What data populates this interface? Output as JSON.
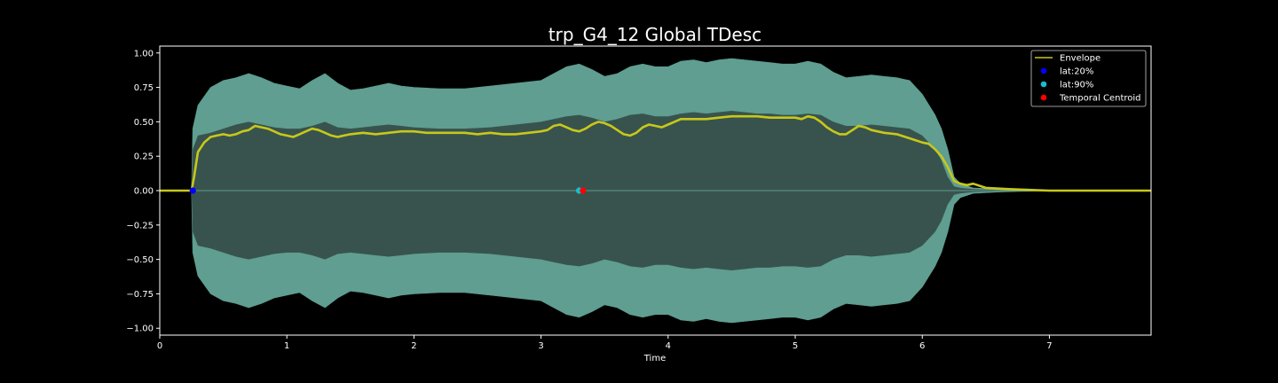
{
  "chart_data": {
    "type": "line",
    "title": "trp_G4_12 Global TDesc",
    "xlabel": "Time",
    "ylabel": "",
    "xlim": [
      0,
      7.8
    ],
    "ylim": [
      -1.05,
      1.05
    ],
    "xticks": [
      0,
      1,
      2,
      3,
      4,
      5,
      6,
      7
    ],
    "yticks": [
      1.0,
      0.75,
      0.5,
      0.25,
      0.0,
      -0.25,
      -0.5,
      -0.75,
      -1.0
    ],
    "xtick_labels": [
      "0",
      "1",
      "2",
      "3",
      "4",
      "5",
      "6",
      "7"
    ],
    "ytick_labels": [
      "1.00",
      "0.75",
      "0.50",
      "0.25",
      "0.00",
      "−0.25",
      "−0.50",
      "−0.75",
      "−1.00"
    ],
    "grid": false,
    "legend_position": "top-right",
    "colors": {
      "background": "#000000",
      "waveform_outer": "#5f9e91",
      "waveform_inner": "#38534d",
      "envelope": "#c8c81a",
      "lat20": "#0000ff",
      "lat90": "#17becf",
      "centroid": "#ff0000",
      "axes": "#ffffff"
    },
    "waveform": {
      "name": "",
      "x": [
        0,
        0.25,
        0.26,
        0.3,
        0.4,
        0.5,
        0.6,
        0.7,
        0.8,
        0.9,
        1.0,
        1.1,
        1.2,
        1.3,
        1.4,
        1.5,
        1.6,
        1.7,
        1.8,
        1.9,
        2.0,
        2.2,
        2.4,
        2.6,
        2.8,
        3.0,
        3.1,
        3.2,
        3.3,
        3.4,
        3.5,
        3.6,
        3.7,
        3.8,
        3.9,
        4.0,
        4.1,
        4.2,
        4.3,
        4.4,
        4.5,
        4.6,
        4.7,
        4.8,
        4.9,
        5.0,
        5.1,
        5.2,
        5.3,
        5.4,
        5.5,
        5.6,
        5.7,
        5.8,
        5.9,
        6.0,
        6.1,
        6.15,
        6.2,
        6.25,
        6.3,
        6.4,
        6.6,
        6.8,
        7.0,
        7.2,
        7.8
      ],
      "upper": [
        0,
        0,
        0.45,
        0.62,
        0.75,
        0.8,
        0.82,
        0.85,
        0.82,
        0.78,
        0.76,
        0.74,
        0.8,
        0.85,
        0.78,
        0.73,
        0.74,
        0.76,
        0.78,
        0.76,
        0.75,
        0.74,
        0.74,
        0.76,
        0.78,
        0.8,
        0.85,
        0.9,
        0.92,
        0.88,
        0.83,
        0.85,
        0.9,
        0.92,
        0.9,
        0.9,
        0.94,
        0.95,
        0.93,
        0.95,
        0.96,
        0.95,
        0.94,
        0.93,
        0.92,
        0.92,
        0.94,
        0.92,
        0.86,
        0.82,
        0.83,
        0.84,
        0.83,
        0.82,
        0.8,
        0.7,
        0.55,
        0.45,
        0.3,
        0.1,
        0.05,
        0.02,
        0.01,
        0.005,
        0.002,
        0,
        0
      ],
      "inner": [
        0,
        0,
        0.3,
        0.4,
        0.42,
        0.45,
        0.48,
        0.5,
        0.48,
        0.46,
        0.45,
        0.45,
        0.47,
        0.5,
        0.46,
        0.45,
        0.46,
        0.47,
        0.48,
        0.47,
        0.46,
        0.45,
        0.45,
        0.46,
        0.48,
        0.5,
        0.52,
        0.54,
        0.55,
        0.53,
        0.5,
        0.52,
        0.55,
        0.56,
        0.54,
        0.54,
        0.56,
        0.57,
        0.56,
        0.57,
        0.58,
        0.57,
        0.56,
        0.56,
        0.55,
        0.55,
        0.56,
        0.55,
        0.5,
        0.47,
        0.47,
        0.48,
        0.47,
        0.46,
        0.45,
        0.4,
        0.3,
        0.22,
        0.1,
        0.03,
        0.02,
        0.01,
        0.005,
        0.002,
        0.001,
        0,
        0
      ]
    },
    "series": [
      {
        "name": "Envelope",
        "x": [
          0,
          0.25,
          0.27,
          0.3,
          0.35,
          0.4,
          0.45,
          0.5,
          0.55,
          0.6,
          0.65,
          0.7,
          0.75,
          0.8,
          0.85,
          0.9,
          0.95,
          1.0,
          1.05,
          1.1,
          1.15,
          1.2,
          1.25,
          1.3,
          1.35,
          1.4,
          1.45,
          1.5,
          1.6,
          1.7,
          1.8,
          1.9,
          2.0,
          2.1,
          2.2,
          2.3,
          2.4,
          2.5,
          2.6,
          2.7,
          2.8,
          2.9,
          3.0,
          3.05,
          3.1,
          3.15,
          3.2,
          3.25,
          3.3,
          3.35,
          3.4,
          3.45,
          3.5,
          3.55,
          3.6,
          3.65,
          3.7,
          3.75,
          3.8,
          3.85,
          3.9,
          3.95,
          4.0,
          4.05,
          4.1,
          4.15,
          4.2,
          4.3,
          4.4,
          4.5,
          4.6,
          4.7,
          4.8,
          4.9,
          5.0,
          5.05,
          5.1,
          5.15,
          5.2,
          5.25,
          5.3,
          5.35,
          5.4,
          5.45,
          5.5,
          5.55,
          5.6,
          5.7,
          5.8,
          5.9,
          6.0,
          6.05,
          6.1,
          6.15,
          6.2,
          6.25,
          6.3,
          6.35,
          6.4,
          6.5,
          6.7,
          7.0,
          7.8
        ],
        "values": [
          0,
          0,
          0.1,
          0.28,
          0.35,
          0.39,
          0.4,
          0.41,
          0.4,
          0.41,
          0.43,
          0.44,
          0.47,
          0.46,
          0.45,
          0.43,
          0.41,
          0.4,
          0.39,
          0.41,
          0.43,
          0.45,
          0.44,
          0.42,
          0.4,
          0.39,
          0.4,
          0.41,
          0.42,
          0.41,
          0.42,
          0.43,
          0.43,
          0.42,
          0.42,
          0.42,
          0.42,
          0.41,
          0.42,
          0.41,
          0.41,
          0.42,
          0.43,
          0.44,
          0.47,
          0.48,
          0.46,
          0.44,
          0.43,
          0.45,
          0.48,
          0.5,
          0.49,
          0.47,
          0.44,
          0.41,
          0.4,
          0.42,
          0.46,
          0.48,
          0.47,
          0.46,
          0.48,
          0.5,
          0.52,
          0.52,
          0.52,
          0.52,
          0.53,
          0.54,
          0.54,
          0.54,
          0.53,
          0.53,
          0.53,
          0.52,
          0.54,
          0.53,
          0.5,
          0.46,
          0.43,
          0.41,
          0.41,
          0.44,
          0.47,
          0.46,
          0.44,
          0.42,
          0.41,
          0.38,
          0.35,
          0.34,
          0.3,
          0.25,
          0.17,
          0.07,
          0.05,
          0.04,
          0.05,
          0.02,
          0.01,
          0,
          0
        ]
      }
    ],
    "markers": [
      {
        "name": "lat:20%",
        "x": 0.26,
        "y": 0.0,
        "color": "#0000ff"
      },
      {
        "name": "lat:90%",
        "x": 3.3,
        "y": 0.0,
        "color": "#17becf"
      },
      {
        "name": "Temporal Centroid",
        "x": 3.33,
        "y": 0.0,
        "color": "#ff0000"
      }
    ],
    "legend": [
      "Envelope",
      "lat:20%",
      "lat:90%",
      "Temporal Centroid"
    ]
  }
}
